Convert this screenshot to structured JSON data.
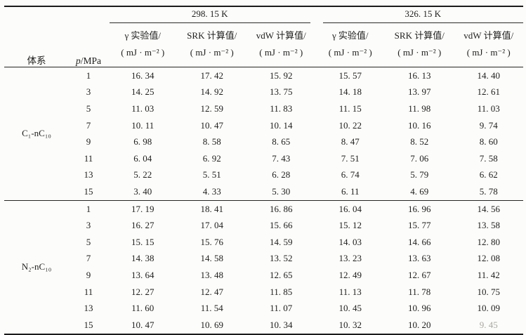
{
  "table": {
    "col_system_label": "体系",
    "p_symbol": "p",
    "p_unit": "/MPa",
    "temp_headers": [
      "298. 15 K",
      "326. 15 K"
    ],
    "measure_headers": [
      {
        "line1": "γ 实验值/",
        "line2": "( mJ · m⁻² )"
      },
      {
        "line1": "SRK 计算值/",
        "line2": "( mJ · m⁻² )"
      },
      {
        "line1": "vdW 计算值/",
        "line2": "( mJ · m⁻² )"
      }
    ],
    "groups": [
      {
        "system": "C₁-nC₁₀",
        "rows": [
          {
            "p": "1",
            "values": [
              "16. 34",
              "17. 42",
              "15. 92",
              "15. 57",
              "16. 13",
              "14. 40"
            ]
          },
          {
            "p": "3",
            "values": [
              "14. 25",
              "14. 92",
              "13. 75",
              "14. 18",
              "13. 97",
              "12. 61"
            ]
          },
          {
            "p": "5",
            "values": [
              "11. 03",
              "12. 59",
              "11. 83",
              "11. 15",
              "11. 98",
              "11. 03"
            ]
          },
          {
            "p": "7",
            "values": [
              "10. 11",
              "10. 47",
              "10. 14",
              "10. 22",
              "10. 16",
              "9. 74"
            ]
          },
          {
            "p": "9",
            "values": [
              "6. 98",
              "8. 58",
              "8. 65",
              "8. 47",
              "8. 52",
              "8. 60"
            ]
          },
          {
            "p": "11",
            "values": [
              "6. 04",
              "6. 92",
              "7. 43",
              "7. 51",
              "7. 06",
              "7. 58"
            ]
          },
          {
            "p": "13",
            "values": [
              "5. 22",
              "5. 51",
              "6. 28",
              "6. 74",
              "5. 79",
              "6. 62"
            ]
          },
          {
            "p": "15",
            "values": [
              "3. 40",
              "4. 33",
              "5. 30",
              "6. 11",
              "4. 69",
              "5. 78"
            ]
          }
        ]
      },
      {
        "system": "N₂-nC₁₀",
        "rows": [
          {
            "p": "1",
            "values": [
              "17. 19",
              "18. 41",
              "16. 86",
              "16. 04",
              "16. 96",
              "14. 56"
            ]
          },
          {
            "p": "3",
            "values": [
              "16. 27",
              "17. 04",
              "15. 66",
              "15. 12",
              "15. 77",
              "13. 58"
            ]
          },
          {
            "p": "5",
            "values": [
              "15. 15",
              "15. 76",
              "14. 59",
              "14. 03",
              "14. 66",
              "12. 80"
            ]
          },
          {
            "p": "7",
            "values": [
              "14. 38",
              "14. 58",
              "13. 52",
              "13. 23",
              "13. 63",
              "12. 08"
            ]
          },
          {
            "p": "9",
            "values": [
              "13. 64",
              "13. 48",
              "12. 65",
              "12. 49",
              "12. 67",
              "11. 42"
            ]
          },
          {
            "p": "11",
            "values": [
              "12. 27",
              "12. 47",
              "11. 85",
              "11. 13",
              "11. 78",
              "10. 75"
            ]
          },
          {
            "p": "13",
            "values": [
              "11. 60",
              "11. 54",
              "11. 07",
              "10. 45",
              "10. 96",
              "10. 09"
            ]
          },
          {
            "p": "15",
            "values": [
              "10. 47",
              "10. 69",
              "10. 34",
              "10. 32",
              "10. 20",
              "9. 45"
            ]
          }
        ]
      }
    ],
    "faded_cell": {
      "group": 1,
      "row": 7,
      "col": 5
    }
  }
}
